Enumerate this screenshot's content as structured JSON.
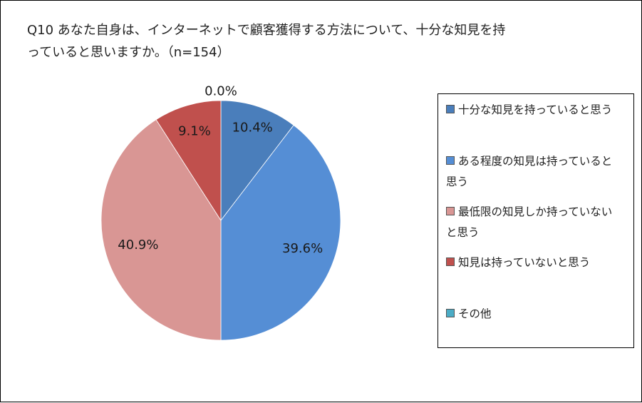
{
  "title": "Q10 あなた自身は、インターネットで顧客獲得する方法について、十分な知見を持\nっていると思いますか。（n=154）",
  "chart_data": {
    "type": "pie",
    "slices": [
      {
        "label": "十分な知見を持っていると思う",
        "value": 10.4,
        "value_label": "10.4%",
        "color": "#4a7ebb"
      },
      {
        "label": "ある程度の知見は持っていると思う",
        "value": 39.6,
        "value_label": "39.6%",
        "color": "#558ed5"
      },
      {
        "label": "最低限の知見しか持っていないと思う",
        "value": 40.9,
        "value_label": "40.9%",
        "color": "#d99694"
      },
      {
        "label": "知見は持っていないと思う",
        "value": 9.1,
        "value_label": "9.1%",
        "color": "#c0504d"
      },
      {
        "label": "その他",
        "value": 0.0,
        "value_label": "0.0%",
        "color": "#4bacc6"
      }
    ],
    "legend_position": "right"
  },
  "legend": {
    "items": [
      {
        "label": "十分な知見を持っていると思う",
        "color": "#4a7ebb"
      },
      {
        "label": "ある程度の知見は持っていると\n思う",
        "color": "#558ed5"
      },
      {
        "label": "最低限の知見しか持っていない\nと思う",
        "color": "#d99694"
      },
      {
        "label": "知見は持っていないと思う",
        "color": "#c0504d"
      },
      {
        "label": "その他",
        "color": "#4bacc6"
      }
    ]
  }
}
